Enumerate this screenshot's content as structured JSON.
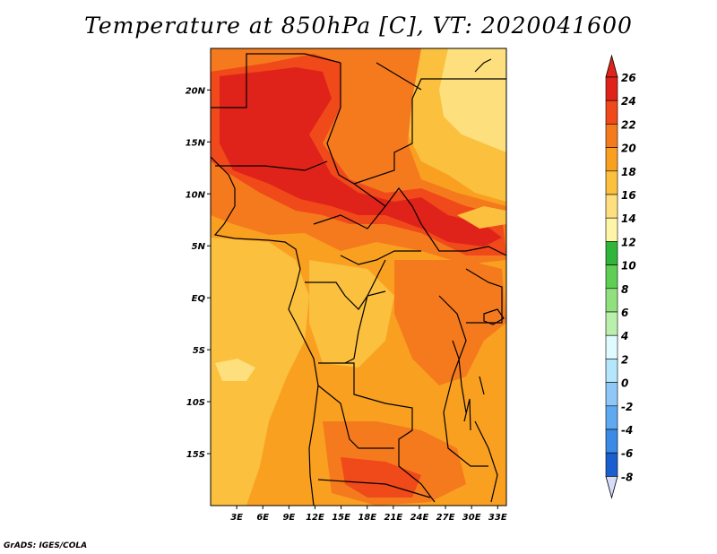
{
  "title": "Temperature at 850hPa [C], VT: 2020041600",
  "credit": "GrADS: IGES/COLA",
  "map": {
    "variable": "Temperature at 850hPa",
    "units": "C",
    "valid_time": "2020041600",
    "lon_range": [
      0,
      34
    ],
    "lat_range": [
      -20,
      24
    ],
    "x_ticks": [
      "3E",
      "6E",
      "9E",
      "12E",
      "15E",
      "18E",
      "21E",
      "24E",
      "27E",
      "30E",
      "33E"
    ],
    "x_tick_values": [
      3,
      6,
      9,
      12,
      15,
      18,
      21,
      24,
      27,
      30,
      33
    ],
    "y_ticks": [
      "20N",
      "15N",
      "10N",
      "5N",
      "EQ",
      "5S",
      "10S",
      "15S"
    ],
    "y_tick_values": [
      20,
      15,
      10,
      5,
      0,
      -5,
      -10,
      -15
    ]
  },
  "colorbar": {
    "levels": [
      "26",
      "24",
      "22",
      "20",
      "18",
      "16",
      "14",
      "12",
      "10",
      "8",
      "6",
      "4",
      "2",
      "0",
      "-2",
      "-4",
      "-6",
      "-8"
    ],
    "colors": [
      "#e0231a",
      "#f0491a",
      "#f57a1d",
      "#f9a021",
      "#fac03e",
      "#fedf7e",
      "#fff5a8",
      "#2fb539",
      "#60cd55",
      "#90e07d",
      "#bbf0ac",
      "#e0fbff",
      "#b4e6fc",
      "#8fc8f7",
      "#5ea9ef",
      "#3b8ae6",
      "#1a5fce",
      "#0a40ad",
      "#08258b",
      "#040b63",
      "#d8dcf8"
    ],
    "top_color": "#e0231a",
    "bottom_color": "#d8dcf8"
  }
}
